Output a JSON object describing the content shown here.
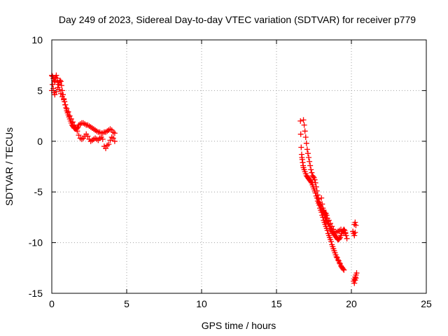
{
  "chart_data": {
    "type": "scatter",
    "title": "Day 249 of 2023, Sidereal Day-to-day VTEC variation (SDTVAR) for receiver p779",
    "xlabel": "GPS time / hours",
    "ylabel": "SDTVAR / TECUs",
    "xlim": [
      0,
      25
    ],
    "ylim": [
      -15,
      10
    ],
    "xticks": [
      0,
      5,
      10,
      15,
      20,
      25
    ],
    "yticks": [
      10,
      5,
      0,
      -5,
      -10,
      -15
    ],
    "grid": true,
    "marker": "plus",
    "color": "#ff0000",
    "series": [
      {
        "name": "morning-upper",
        "x": [
          0.0,
          0.05,
          0.1,
          0.15,
          0.2,
          0.25,
          0.3,
          0.35,
          0.4,
          0.45,
          0.5,
          0.55,
          0.6,
          0.65,
          0.7,
          0.75,
          0.8,
          0.85,
          0.9,
          0.95,
          1.0,
          1.05,
          1.1,
          1.15,
          1.2,
          1.25,
          1.3,
          1.35,
          1.4,
          1.45,
          1.5,
          1.55,
          1.6,
          1.65,
          1.7,
          1.75,
          1.8,
          1.9,
          2.0,
          2.1,
          2.2,
          2.3,
          2.4,
          2.5,
          2.6,
          2.7,
          2.8,
          2.9,
          3.0,
          3.1,
          3.2,
          3.3,
          3.4,
          3.5,
          3.6,
          3.7,
          3.8,
          3.9,
          4.0,
          4.1,
          4.2
        ],
        "y": [
          6.5,
          6.4,
          6.2,
          6.0,
          5.9,
          6.3,
          6.5,
          6.2,
          5.8,
          5.6,
          5.8,
          6.0,
          5.9,
          5.5,
          5.0,
          4.6,
          4.2,
          3.9,
          3.6,
          3.3,
          3.0,
          2.8,
          2.6,
          2.4,
          2.2,
          2.0,
          1.8,
          1.6,
          1.5,
          1.4,
          1.3,
          1.3,
          1.2,
          1.2,
          1.3,
          1.4,
          1.6,
          1.7,
          1.8,
          1.8,
          1.7,
          1.6,
          1.6,
          1.5,
          1.4,
          1.3,
          1.2,
          1.1,
          1.0,
          0.9,
          0.9,
          0.8,
          0.8,
          0.9,
          0.9,
          1.0,
          1.1,
          1.2,
          1.1,
          0.9,
          0.8
        ]
      },
      {
        "name": "morning-lower",
        "x": [
          0.0,
          0.05,
          0.1,
          0.15,
          0.2,
          0.3,
          0.4,
          0.5,
          0.6,
          0.7,
          0.8,
          0.9,
          1.0,
          1.1,
          1.2,
          1.3,
          1.4,
          1.5,
          1.6,
          1.7,
          1.8,
          1.9,
          2.0,
          2.1,
          2.2,
          2.3,
          2.4,
          2.5,
          2.6,
          2.7,
          2.8,
          2.9,
          3.0,
          3.1,
          3.2,
          3.3,
          3.4,
          3.5,
          3.6,
          3.7,
          3.8,
          3.9,
          4.0,
          4.1,
          4.2
        ],
        "y": [
          5.0,
          5.6,
          5.2,
          4.8,
          4.6,
          4.9,
          5.3,
          5.1,
          4.7,
          4.4,
          4.1,
          3.6,
          3.2,
          2.9,
          2.5,
          2.2,
          1.9,
          1.6,
          1.3,
          1.0,
          0.6,
          0.3,
          0.2,
          0.3,
          0.5,
          0.7,
          0.5,
          0.2,
          0.0,
          0.1,
          0.2,
          0.3,
          0.2,
          0.1,
          0.3,
          0.4,
          0.2,
          -0.5,
          -0.7,
          -0.4,
          -0.3,
          0.1,
          0.4,
          0.3,
          0.0
        ]
      },
      {
        "name": "afternoon-main",
        "x": [
          16.6,
          16.62,
          16.65,
          16.68,
          16.7,
          16.72,
          16.75,
          16.78,
          16.8,
          16.85,
          16.9,
          16.95,
          17.0,
          17.05,
          17.1,
          17.15,
          17.2,
          17.25,
          17.3,
          17.35,
          17.4,
          17.45,
          17.5,
          17.55,
          17.6,
          17.65,
          17.7,
          17.75,
          17.8,
          17.85,
          17.9,
          17.95,
          18.0,
          18.05,
          18.1,
          18.15,
          18.2,
          18.25,
          18.3,
          18.35,
          18.4,
          18.45,
          18.5,
          18.55,
          18.6,
          18.65,
          18.7,
          18.75,
          18.8,
          18.85,
          18.9,
          18.95,
          19.0,
          19.05,
          19.1,
          19.15,
          19.2,
          19.25,
          19.3,
          19.35,
          19.4,
          19.45,
          19.5
        ],
        "y": [
          2.0,
          0.7,
          -0.6,
          -1.3,
          -1.6,
          -1.8,
          -2.1,
          -2.4,
          -2.6,
          -2.8,
          -3.0,
          -3.2,
          -3.4,
          -3.5,
          -3.6,
          -3.7,
          -3.8,
          -3.9,
          -4.0,
          -4.1,
          -4.3,
          -4.5,
          -4.7,
          -4.9,
          -5.1,
          -5.4,
          -5.6,
          -5.9,
          -6.1,
          -6.3,
          -6.6,
          -6.8,
          -7.0,
          -7.3,
          -7.5,
          -7.8,
          -8.0,
          -8.2,
          -8.4,
          -8.6,
          -8.8,
          -9.1,
          -9.3,
          -9.5,
          -9.7,
          -9.9,
          -10.2,
          -10.4,
          -10.6,
          -10.8,
          -11.0,
          -11.2,
          -11.4,
          -11.5,
          -11.7,
          -11.8,
          -12.0,
          -12.1,
          -12.3,
          -12.4,
          -12.5,
          -12.6,
          -12.7
        ]
      },
      {
        "name": "afternoon-secondary",
        "x": [
          16.8,
          16.85,
          16.9,
          16.95,
          17.0,
          17.05,
          17.1,
          17.15,
          17.2,
          17.25,
          17.3,
          17.35,
          17.4,
          17.45,
          17.5,
          17.55,
          17.6,
          17.65,
          17.7,
          17.75,
          17.8,
          17.85,
          17.9,
          17.95,
          18.0,
          18.05,
          18.1,
          18.15,
          18.2,
          18.25,
          18.3,
          18.35,
          18.4,
          18.45,
          18.5,
          18.55,
          18.6,
          18.65,
          18.7,
          18.75,
          18.8,
          18.85,
          18.9,
          18.95,
          19.0,
          19.05,
          19.1,
          19.15,
          19.2,
          19.25,
          19.3,
          19.35,
          19.4,
          19.45,
          19.5,
          19.55,
          19.6,
          19.65,
          19.7
        ],
        "y": [
          2.1,
          1.6,
          1.0,
          0.4,
          -0.2,
          -0.8,
          -1.2,
          -1.6,
          -2.0,
          -2.4,
          -2.8,
          -3.1,
          -3.4,
          -3.5,
          -3.6,
          -3.8,
          -4.1,
          -4.5,
          -4.9,
          -5.3,
          -5.7,
          -6.0,
          -6.2,
          -6.4,
          -6.6,
          -6.8,
          -6.9,
          -7.1,
          -7.3,
          -7.5,
          -7.6,
          -7.8,
          -7.9,
          -8.1,
          -8.2,
          -8.4,
          -8.6,
          -8.7,
          -8.9,
          -9.0,
          -9.1,
          -9.2,
          -9.3,
          -9.4,
          -9.5,
          -9.6,
          -9.7,
          -9.7,
          -9.6,
          -9.5,
          -9.3,
          -9.1,
          -8.9,
          -8.8,
          -8.7,
          -8.8,
          -9.0,
          -9.3,
          -9.6
        ]
      },
      {
        "name": "afternoon-tail",
        "x": [
          18.0,
          18.05,
          18.1,
          18.15,
          18.2,
          18.25,
          18.3,
          18.35,
          18.4,
          18.5,
          18.6,
          18.7,
          18.8,
          18.9,
          19.0,
          19.1,
          19.2,
          19.3,
          19.4,
          19.5,
          19.6
        ],
        "y": [
          -5.6,
          -6.2,
          -6.6,
          -6.8,
          -7.0,
          -7.2,
          -7.1,
          -7.3,
          -7.6,
          -7.8,
          -8.1,
          -8.4,
          -8.7,
          -8.9,
          -9.0,
          -8.9,
          -8.8,
          -8.7,
          -8.9,
          -9.0,
          -9.1
        ]
      },
      {
        "name": "late-cluster",
        "x": [
          20.1,
          20.15,
          20.2,
          20.25,
          20.2,
          20.25,
          20.3,
          20.15,
          20.2,
          20.25,
          20.3,
          20.35,
          20.2,
          20.25,
          20.3
        ],
        "y": [
          -8.9,
          -9.1,
          -9.3,
          -9.0,
          -8.2,
          -8.0,
          -8.3,
          -13.8,
          -13.6,
          -13.4,
          -13.2,
          -13.0,
          -14.0,
          -13.7,
          -13.5
        ]
      }
    ]
  }
}
